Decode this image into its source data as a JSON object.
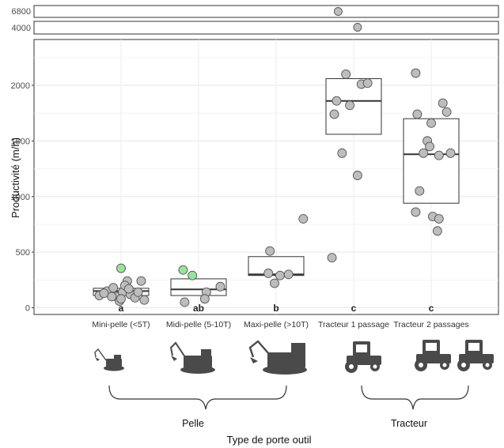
{
  "chart_data": {
    "type": "box",
    "ylabel": "Productivité (m/h)",
    "xlabel": "Type de porte outil",
    "ylim": [
      -80,
      2400
    ],
    "yticks": [
      0,
      500,
      1000,
      1500,
      2000
    ],
    "broken_axis_ticks": [
      6800,
      4000
    ],
    "grid": true,
    "categories": [
      "Mini-pelle (<5T)",
      "Midi-pelle (5-10T)",
      "Maxi-pelle (>10T)",
      "Tracteur 1 passage",
      "Tracteur 2 passages"
    ],
    "boxes": [
      {
        "q1": 110,
        "median": 150,
        "q3": 175
      },
      {
        "q1": 110,
        "median": 165,
        "q3": 260
      },
      {
        "q1": 290,
        "median": 300,
        "q3": 460
      },
      {
        "q1": 1560,
        "median": 1860,
        "q3": 2060
      },
      {
        "q1": 940,
        "median": 1380,
        "q3": 1700
      }
    ],
    "letters": [
      "a",
      "ab",
      "b",
      "c",
      "c"
    ],
    "groups": [
      "Pelle",
      "Tracteur"
    ],
    "colors": {
      "point": "#bdbdbd",
      "highlight": "#98e39a",
      "box": "#ffffff",
      "median": "#333333"
    },
    "points": [
      [
        {
          "dx": -0.28,
          "y": 110
        },
        {
          "dx": -0.18,
          "y": 150
        },
        {
          "dx": -0.1,
          "y": 180
        },
        {
          "dx": -0.06,
          "y": 100
        },
        {
          "dx": 0.02,
          "y": 140
        },
        {
          "dx": 0.08,
          "y": 240
        },
        {
          "dx": 0.12,
          "y": 120
        },
        {
          "dx": 0.18,
          "y": 90
        },
        {
          "dx": -0.02,
          "y": 60
        },
        {
          "dx": 0.26,
          "y": 240
        },
        {
          "dx": 0.3,
          "y": 70
        },
        {
          "dx": -0.22,
          "y": 130
        },
        {
          "dx": 0.05,
          "y": 200
        },
        {
          "dx": -0.12,
          "y": 100
        },
        {
          "dx": 0.1,
          "y": 170
        },
        {
          "dx": 0.22,
          "y": 140
        },
        {
          "dx": 0.0,
          "y": 80
        },
        {
          "dx": 0.0,
          "y": 355,
          "hl": true
        }
      ],
      [
        {
          "dx": -0.2,
          "y": 340,
          "hl": true
        },
        {
          "dx": -0.08,
          "y": 290,
          "hl": true
        },
        {
          "dx": -0.18,
          "y": 50
        },
        {
          "dx": 0.1,
          "y": 140
        },
        {
          "dx": 0.28,
          "y": 190
        },
        {
          "dx": 0.08,
          "y": 80
        }
      ],
      [
        {
          "dx": -0.08,
          "y": 510
        },
        {
          "dx": -0.1,
          "y": 310
        },
        {
          "dx": 0.05,
          "y": 290
        },
        {
          "dx": -0.02,
          "y": 220
        },
        {
          "dx": 0.16,
          "y": 300
        },
        {
          "dx": 0.35,
          "y": 800
        }
      ],
      [
        {
          "dx": -0.28,
          "y": 450
        },
        {
          "dx": -0.15,
          "y": 1390
        },
        {
          "dx": 0.05,
          "y": 1190
        },
        {
          "dx": -0.1,
          "y": 2100
        },
        {
          "dx": 0.1,
          "y": 2010
        },
        {
          "dx": 0.18,
          "y": 2020
        },
        {
          "dx": -0.22,
          "y": 1860
        },
        {
          "dx": -0.05,
          "y": 1820
        },
        {
          "dx": -0.25,
          "y": 1740
        }
      ],
      [
        {
          "dx": -0.2,
          "y": 2110
        },
        {
          "dx": -0.18,
          "y": 1740
        },
        {
          "dx": 0.0,
          "y": 1660
        },
        {
          "dx": 0.15,
          "y": 1840
        },
        {
          "dx": 0.2,
          "y": 1760
        },
        {
          "dx": -0.05,
          "y": 1500
        },
        {
          "dx": -0.02,
          "y": 1450
        },
        {
          "dx": -0.1,
          "y": 1390
        },
        {
          "dx": 0.1,
          "y": 1370
        },
        {
          "dx": 0.25,
          "y": 1390
        },
        {
          "dx": -0.15,
          "y": 1050
        },
        {
          "dx": -0.2,
          "y": 860
        },
        {
          "dx": 0.02,
          "y": 820
        },
        {
          "dx": 0.1,
          "y": 800
        },
        {
          "dx": 0.08,
          "y": 690
        }
      ]
    ],
    "outliers": [
      {
        "cat": 3,
        "dx": -0.2,
        "y": 6800
      },
      {
        "cat": 3,
        "dx": 0.05,
        "y": 4000
      }
    ]
  }
}
